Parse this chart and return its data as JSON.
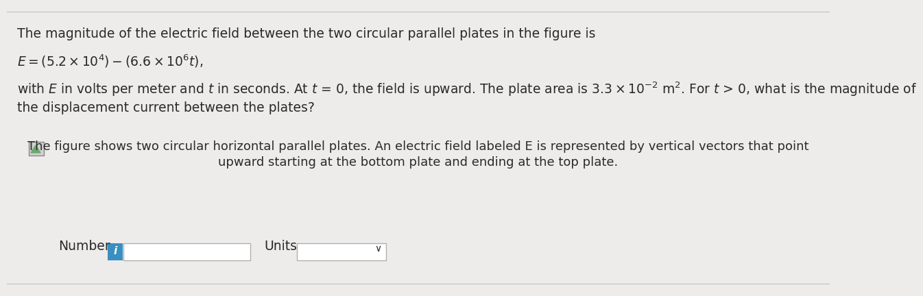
{
  "bg_color": "#edecea",
  "text_color": "#2a2a2a",
  "line1": "The magnitude of the electric field between the two circular parallel plates in the figure is",
  "eq_text": "$E = (5.2 \\times 10^4)-(6.6 \\times 10^6t),$",
  "line3": "with $E$ in volts per meter and $t$ in seconds. At $t$ = 0, the field is upward. The plate area is $3.3 \\times 10^{-2}$ m$^2$. For $t$ > 0, what is the magnitude of",
  "line4": "the displacement current between the plates?",
  "caption_line1": "The figure shows two circular horizontal parallel plates. An electric field labeled E is represented by vertical vectors that point",
  "caption_line2": "upward starting at the bottom plate and ending at the top plate.",
  "number_label": "Number",
  "units_label": "Units",
  "info_btn_color": "#3a8fc0",
  "info_btn_text": "i",
  "font_size_main": 13.5,
  "font_size_caption": 13.0,
  "font_size_eq": 13.5,
  "font_size_label": 13.5,
  "top_border_color": "#c8c8c8",
  "bottom_border_color": "#c8c8c8"
}
